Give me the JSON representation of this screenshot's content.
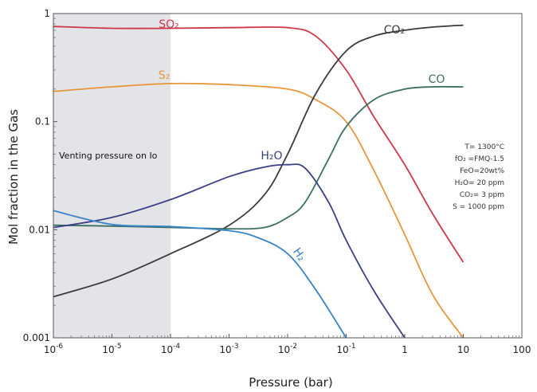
{
  "chart_data": {
    "type": "line",
    "xlabel": "Pressure (bar)",
    "ylabel": "Mol fraction in the Gas",
    "xscale": "log",
    "yscale": "log",
    "xlim": [
      1e-06,
      100
    ],
    "ylim": [
      0.001,
      1
    ],
    "x_tick_labels": [
      {
        "base": "10",
        "exp": "-6"
      },
      {
        "base": "10",
        "exp": "-5"
      },
      {
        "base": "10",
        "exp": "-4"
      },
      {
        "base": "10",
        "exp": "-3"
      },
      {
        "base": "10",
        "exp": "-2"
      },
      {
        "base": "10",
        "exp": "-1"
      },
      {
        "base": "1",
        "exp": ""
      },
      {
        "base": "10",
        "exp": ""
      },
      {
        "base": "100",
        "exp": ""
      }
    ],
    "y_tick_labels": [
      "1",
      "0.1",
      "0.01",
      "0.001"
    ],
    "shaded_region": {
      "x": [
        1e-06,
        0.0001
      ],
      "label": "Venting pressure on Io"
    },
    "conditions": [
      "T= 1300°C",
      "fO₂ =FMQ-1.5",
      "FeO=20wt%",
      "H₂O= 20 ppm",
      "CO₂= 3 ppm",
      "S = 1000 ppm"
    ],
    "series": [
      {
        "name": "SO₂",
        "color": "#d0374a",
        "x": [
          1e-06,
          1e-05,
          0.0001,
          0.001,
          0.01,
          0.03,
          0.1,
          0.3,
          1,
          3,
          10
        ],
        "y": [
          0.76,
          0.73,
          0.73,
          0.74,
          0.74,
          0.62,
          0.3,
          0.11,
          0.04,
          0.014,
          0.005
        ]
      },
      {
        "name": "S₂",
        "color": "#e8963a",
        "x": [
          1e-06,
          1e-05,
          0.0001,
          0.001,
          0.01,
          0.03,
          0.1,
          0.3,
          1,
          3,
          10
        ],
        "y": [
          0.19,
          0.21,
          0.225,
          0.22,
          0.2,
          0.16,
          0.1,
          0.035,
          0.009,
          0.0025,
          0.001
        ]
      },
      {
        "name": "CO₂",
        "color": "#3b3b3b",
        "x": [
          1e-06,
          1e-05,
          0.0001,
          0.001,
          0.004,
          0.01,
          0.03,
          0.1,
          0.3,
          1,
          3,
          10
        ],
        "y": [
          0.0024,
          0.0035,
          0.006,
          0.011,
          0.021,
          0.05,
          0.18,
          0.45,
          0.62,
          0.7,
          0.75,
          0.78
        ]
      },
      {
        "name": "CO",
        "color": "#3d6e62",
        "x": [
          1e-06,
          1e-05,
          0.0001,
          0.001,
          0.004,
          0.01,
          0.02,
          0.05,
          0.1,
          0.3,
          1,
          3,
          10
        ],
        "y": [
          0.011,
          0.0108,
          0.0105,
          0.0102,
          0.0105,
          0.013,
          0.018,
          0.045,
          0.09,
          0.16,
          0.2,
          0.21,
          0.21
        ]
      },
      {
        "name": "H₂O",
        "color": "#3a3f86",
        "x": [
          1e-06,
          1e-05,
          0.0001,
          0.001,
          0.004,
          0.01,
          0.02,
          0.05,
          0.1,
          0.3,
          1
        ],
        "y": [
          0.0105,
          0.013,
          0.019,
          0.031,
          0.038,
          0.04,
          0.037,
          0.018,
          0.008,
          0.0027,
          0.001
        ]
      },
      {
        "name": "H₂",
        "color": "#3a84c8",
        "x": [
          1e-06,
          1e-05,
          0.0001,
          0.001,
          0.003,
          0.01,
          0.03,
          0.1
        ],
        "y": [
          0.015,
          0.0112,
          0.0107,
          0.0098,
          0.0085,
          0.006,
          0.0028,
          0.001
        ]
      }
    ]
  }
}
